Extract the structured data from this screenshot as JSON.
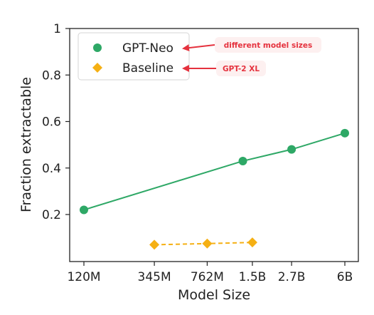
{
  "chart_data": {
    "type": "line",
    "xlabel": "Model Size",
    "ylabel": "Fraction extractable",
    "x_scale": "log",
    "x_ticks": [
      {
        "label": "120M",
        "value": 120
      },
      {
        "label": "345M",
        "value": 345
      },
      {
        "label": "762M",
        "value": 762
      },
      {
        "label": "1.5B",
        "value": 1500
      },
      {
        "label": "2.7B",
        "value": 2700
      },
      {
        "label": "6B",
        "value": 6000
      }
    ],
    "y_ticks": [
      {
        "label": "0.2",
        "value": 0.2
      },
      {
        "label": "0.4",
        "value": 0.4
      },
      {
        "label": "0.6",
        "value": 0.6
      },
      {
        "label": "0.8",
        "value": 0.8
      },
      {
        "label": "1",
        "value": 1.0
      }
    ],
    "ylim": [
      0.0,
      1.0
    ],
    "grid": false,
    "legend_position": "top-left",
    "series": [
      {
        "name": "GPT-Neo",
        "marker": "circle",
        "line": "solid",
        "color": "#2ea866",
        "x": [
          120,
          1300,
          2700,
          6000
        ],
        "y": [
          0.22,
          0.43,
          0.48,
          0.55
        ]
      },
      {
        "name": "Baseline",
        "marker": "diamond",
        "line": "dashed",
        "color": "#f5b014",
        "x": [
          345,
          762,
          1500
        ],
        "y": [
          0.07,
          0.075,
          0.08
        ]
      }
    ],
    "annotations": [
      {
        "text": "different model sizes",
        "points_to": "GPT-Neo",
        "color": "#e5323e"
      },
      {
        "text": "GPT-2 XL",
        "points_to": "Baseline",
        "color": "#e5323e"
      }
    ]
  }
}
